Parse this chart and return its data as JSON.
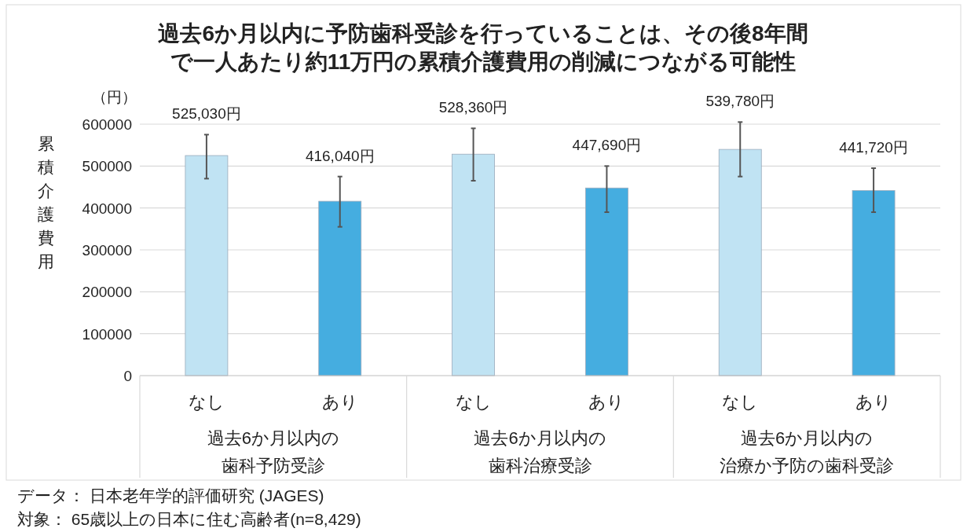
{
  "chart_data": {
    "type": "bar",
    "title": "過去6か月以内に予防歯科受診を行っていることは、その後8年間で一人あたり約11万円の累積介護費用の削減につながる可能性",
    "ylabel": "累積介護費用",
    "categories": [
      "なし",
      "あり",
      "なし",
      "あり",
      "なし",
      "あり"
    ],
    "values": [
      525030,
      416040,
      528360,
      447690,
      539780,
      441720
    ],
    "colors": [
      "#c0e3f3",
      "#45ade0",
      "#c0e3f3",
      "#45ade0",
      "#c0e3f3",
      "#45ade0"
    ],
    "errors": [
      [
        470000,
        575000
      ],
      [
        355000,
        475000
      ],
      [
        465000,
        590000
      ],
      [
        390000,
        500000
      ],
      [
        475000,
        605000
      ],
      [
        390000,
        495000
      ]
    ],
    "value_labels": [
      "525,030円",
      "416,040円",
      "528,360円",
      "447,690円",
      "539,780円",
      "441,720円"
    ],
    "ylim": [
      0,
      600000
    ],
    "yticks": [
      0,
      100000,
      200000,
      300000,
      400000,
      500000,
      600000
    ],
    "grid": "y",
    "annotations": [
      "（円）",
      "過去6か月以内の歯科予防受診",
      "過去6か月以内の歯科治療受診",
      "過去6か月以内の治療か予防の歯科受診",
      "データ：  日本老年学的評価研究 (JAGES)",
      "対象：  65歳以上の日本に住む高齢者(n=8,429)"
    ]
  }
}
